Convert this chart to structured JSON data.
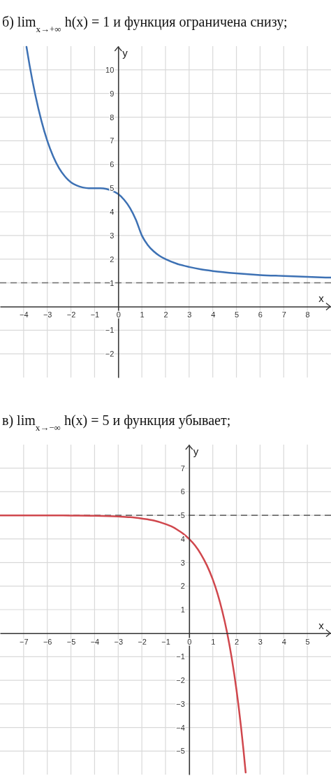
{
  "chart_data": [
    {
      "type": "line",
      "title": "б) lim$_{x→+∞}$ h(x) = 1 и функция ограничена снизу;",
      "xlabel": "x",
      "ylabel": "y",
      "xlim": [
        -5,
        9
      ],
      "ylim": [
        -3,
        11
      ],
      "xticks": [
        -4,
        -3,
        -2,
        -1,
        0,
        1,
        2,
        3,
        4,
        5,
        6,
        7,
        8
      ],
      "yticks": [
        -2,
        -1,
        1,
        2,
        3,
        4,
        5,
        6,
        7,
        8,
        9,
        10
      ],
      "grid": true,
      "series": [
        {
          "color": "#3d71b4",
          "x": [
            -3.88,
            -3.75,
            -3.5,
            -3.25,
            -3,
            -2.75,
            -2.5,
            -2.25,
            -2,
            -1.75,
            -1.5,
            -1.25,
            -1,
            -0.75,
            -0.5,
            -0.25,
            0,
            0.25,
            0.5,
            0.75,
            1,
            1.25,
            1.5,
            1.75,
            2,
            2.5,
            3,
            3.5,
            4,
            5,
            6,
            7,
            8,
            9
          ],
          "values": [
            10.97,
            10.2,
            8.91,
            7.85,
            7,
            6.34,
            5.84,
            5.49,
            5.25,
            5.11,
            5.03,
            5,
            5,
            5,
            4.97,
            4.89,
            4.75,
            4.51,
            4.16,
            3.66,
            3,
            2.6,
            2.33,
            2.14,
            2,
            1.8,
            1.67,
            1.57,
            1.5,
            1.4,
            1.33,
            1.29,
            1.25,
            1.22
          ]
        }
      ],
      "ref_lines": [
        {
          "axis": "y",
          "value": 1,
          "color": "#6e6e6e",
          "line_style": "dashed"
        }
      ]
    },
    {
      "type": "line",
      "title": "в) lim$_{x→−∞}$ h(x) = 5 и функция убывает;",
      "xlabel": "x",
      "ylabel": "y",
      "xlim": [
        -8,
        6
      ],
      "ylim": [
        -6,
        8
      ],
      "xticks": [
        -7,
        -6,
        -5,
        -4,
        -3,
        -2,
        -1,
        0,
        1,
        2,
        3,
        4,
        5
      ],
      "yticks": [
        -5,
        -4,
        -3,
        -2,
        -1,
        1,
        2,
        3,
        4,
        5,
        6,
        7
      ],
      "grid": true,
      "series": [
        {
          "color": "#d0474d",
          "x": [
            -8,
            -7,
            -6,
            -5,
            -4,
            -3,
            -2.5,
            -2,
            -1.5,
            -1,
            -0.75,
            -0.5,
            -0.25,
            0,
            0.25,
            0.5,
            0.75,
            1,
            1.2,
            1.4,
            1.6,
            1.8,
            2,
            2.1,
            2.2,
            2.3,
            2.39
          ],
          "values": [
            5,
            5,
            5,
            4.99,
            4.98,
            4.95,
            4.92,
            4.86,
            4.78,
            4.63,
            4.53,
            4.39,
            4.22,
            4,
            3.72,
            3.35,
            2.88,
            2.28,
            1.68,
            0.94,
            0.05,
            -1.05,
            -2.39,
            -3.17,
            -4.03,
            -4.97,
            -5.91
          ]
        }
      ],
      "ref_lines": [
        {
          "axis": "y",
          "value": 5,
          "color": "#6e6e6e",
          "line_style": "dashed"
        }
      ]
    }
  ]
}
